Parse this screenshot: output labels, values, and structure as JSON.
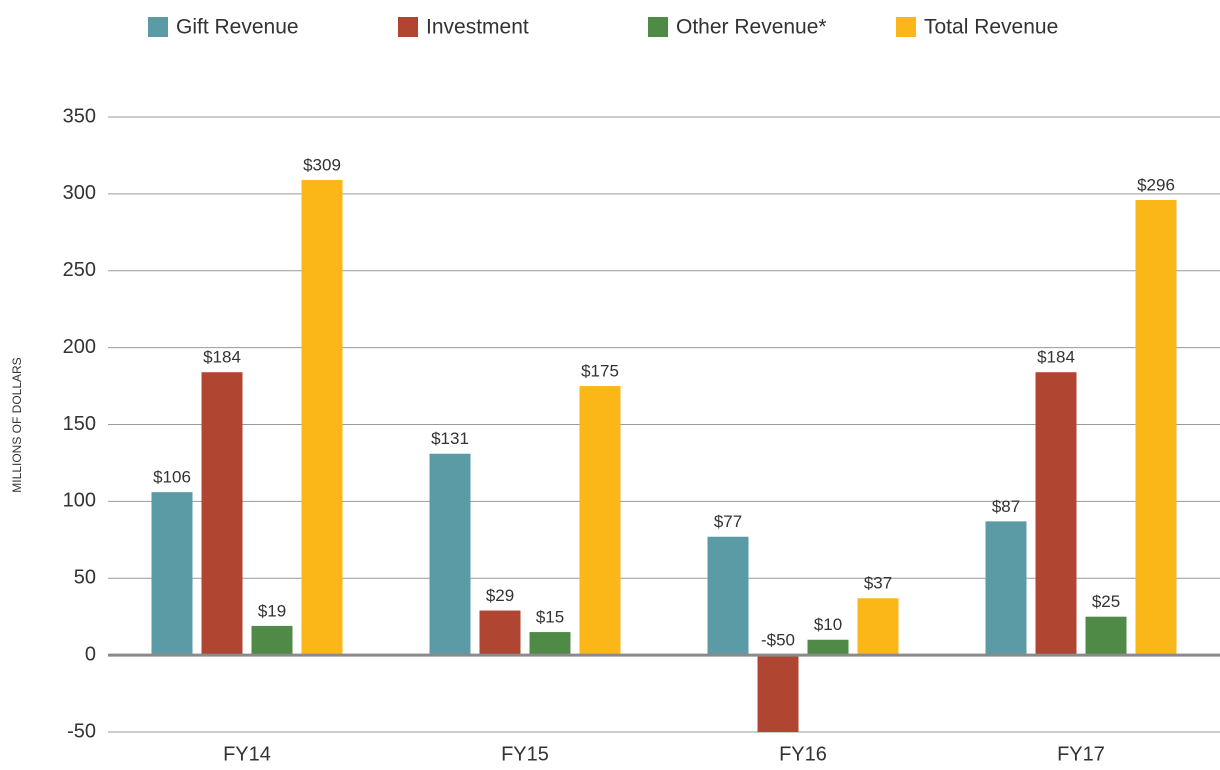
{
  "chart_data": {
    "type": "bar",
    "y_label": "MILLIONS OF DOLLARS",
    "categories": [
      "FY14",
      "FY15",
      "FY16",
      "FY17"
    ],
    "series": [
      {
        "name": "Gift Revenue",
        "color": "#5a9ba6",
        "values": [
          106,
          131,
          77,
          87
        ],
        "value_labels": [
          "$106",
          "$131",
          "$77",
          "$87"
        ]
      },
      {
        "name": "Investment",
        "color": "#b04531",
        "values": [
          184,
          29,
          -50,
          184
        ],
        "value_labels": [
          "$184",
          "$29",
          "-$50",
          "$184"
        ]
      },
      {
        "name": "Other Revenue*",
        "color": "#4f8b47",
        "values": [
          19,
          15,
          10,
          25
        ],
        "value_labels": [
          "$19",
          "$15",
          "$10",
          "$25"
        ]
      },
      {
        "name": "Total Revenue",
        "color": "#fbb617",
        "values": [
          309,
          175,
          37,
          296
        ],
        "value_labels": [
          "$309",
          "$175",
          "$37",
          "$296"
        ]
      }
    ],
    "ylim": [
      -50,
      350
    ],
    "yticks": [
      -50,
      0,
      50,
      100,
      150,
      200,
      250,
      300,
      350
    ],
    "grid": true
  }
}
